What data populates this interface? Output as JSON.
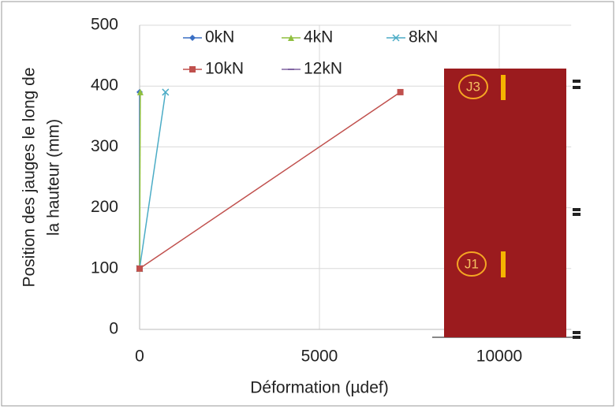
{
  "chart_data": {
    "type": "line",
    "ylabel": [
      "Position des jauges le long de",
      "la hauteur (mm)"
    ],
    "xlabel": "Déformation (µdef)",
    "y": [
      100,
      390
    ],
    "series": [
      {
        "name": "0kN",
        "color": "#3a6fc4",
        "marker": "diamond",
        "x": [
          0,
          0
        ]
      },
      {
        "name": "4kN",
        "color": "#8fbf3f",
        "marker": "triangle",
        "x": [
          0,
          20
        ]
      },
      {
        "name": "8kN",
        "color": "#4bacc6",
        "marker": "cross",
        "x": [
          0,
          720
        ]
      },
      {
        "name": "10kN",
        "color": "#c0504d",
        "marker": "square",
        "x": [
          0,
          7250
        ]
      },
      {
        "name": "12kN",
        "color": "#8064a2",
        "marker": "dash",
        "x": [
          null,
          null
        ]
      }
    ],
    "xlim": [
      0,
      12000
    ],
    "xticks": [
      0,
      5000,
      10000
    ],
    "ylim": [
      0,
      500
    ],
    "yticks": [
      0,
      100,
      200,
      300,
      400,
      500
    ],
    "grid": true,
    "legend": "top"
  },
  "photo": {
    "labels": [
      "J3",
      "J1"
    ]
  }
}
